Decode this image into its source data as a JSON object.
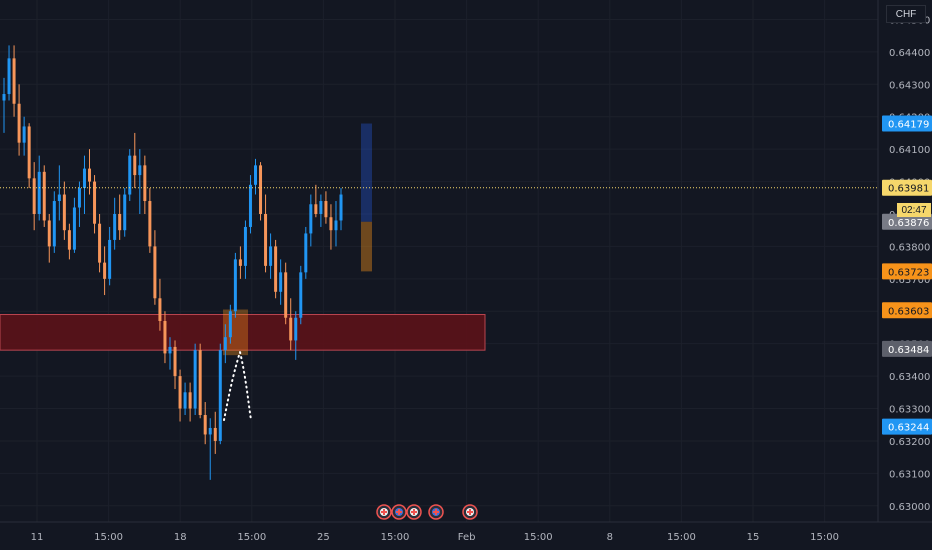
{
  "currency_label": "CHF",
  "countdown": "02:47",
  "chart_data": {
    "type": "candlestick",
    "title": "",
    "xlabel": "",
    "ylabel": "",
    "ylim": [
      0.6295,
      0.6456
    ],
    "y_ticks": [
      {
        "value": 0.645,
        "label": "0.64500"
      },
      {
        "value": 0.644,
        "label": "0.64400"
      },
      {
        "value": 0.643,
        "label": "0.64300"
      },
      {
        "value": 0.642,
        "label": "0.64200"
      },
      {
        "value": 0.641,
        "label": "0.64100"
      },
      {
        "value": 0.64,
        "label": "0.64000"
      },
      {
        "value": 0.639,
        "label": "0.63900"
      },
      {
        "value": 0.638,
        "label": "0.63800"
      },
      {
        "value": 0.637,
        "label": "0.63700"
      },
      {
        "value": 0.636,
        "label": "0.63600"
      },
      {
        "value": 0.635,
        "label": "0.63500"
      },
      {
        "value": 0.634,
        "label": "0.63400"
      },
      {
        "value": 0.633,
        "label": "0.63300"
      },
      {
        "value": 0.632,
        "label": "0.63200"
      },
      {
        "value": 0.631,
        "label": "0.63100"
      },
      {
        "value": 0.63,
        "label": "0.63000"
      }
    ],
    "x_ticks": [
      {
        "slot": 0,
        "label": "11"
      },
      {
        "slot": 1,
        "label": "15:00"
      },
      {
        "slot": 2,
        "label": "18"
      },
      {
        "slot": 3,
        "label": "15:00"
      },
      {
        "slot": 4,
        "label": "25"
      },
      {
        "slot": 5,
        "label": "15:00"
      },
      {
        "slot": 6,
        "label": "Feb"
      },
      {
        "slot": 7,
        "label": "15:00"
      },
      {
        "slot": 8,
        "label": "8"
      },
      {
        "slot": 9,
        "label": "15:00"
      },
      {
        "slot": 10,
        "label": "15"
      },
      {
        "slot": 11,
        "label": "15:00"
      }
    ],
    "price_tags": [
      {
        "value": 0.64179,
        "label": "0.64179",
        "bg": "#2196f3",
        "fg": "#ffffff"
      },
      {
        "value": 0.63981,
        "label": "0.63981",
        "bg": "#f6d76b",
        "fg": "#131722"
      },
      {
        "value": 0.63876,
        "label": "0.63876",
        "bg": "#787b86",
        "fg": "#ffffff"
      },
      {
        "value": 0.63723,
        "label": "0.63723",
        "bg": "#f7931a",
        "fg": "#131722"
      },
      {
        "value": 0.63603,
        "label": "0.63603",
        "bg": "#f7931a",
        "fg": "#131722"
      },
      {
        "value": 0.63484,
        "label": "0.63484",
        "bg": "#5d606b",
        "fg": "#ffffff"
      },
      {
        "value": 0.63244,
        "label": "0.63244",
        "bg": "#2196f3",
        "fg": "#ffffff"
      }
    ],
    "last_price": 0.63981,
    "demand_zone": {
      "top": 0.6359,
      "bottom": 0.6348,
      "color": "#5c1218",
      "border": "#b8454f"
    },
    "position_tool": {
      "entry": 0.63876,
      "target": 0.64179,
      "stop": 0.63723
    },
    "colors": {
      "up": "#2196f3",
      "down": "#f7965a",
      "background": "#131722",
      "grid": "#1c202b"
    },
    "candles": [
      [
        0.6425,
        0.6432,
        0.6415,
        0.6427
      ],
      [
        0.6427,
        0.6442,
        0.6425,
        0.6438
      ],
      [
        0.6438,
        0.6442,
        0.642,
        0.6424
      ],
      [
        0.6424,
        0.643,
        0.6408,
        0.6412
      ],
      [
        0.6412,
        0.642,
        0.6408,
        0.6417
      ],
      [
        0.6417,
        0.6418,
        0.6398,
        0.6401
      ],
      [
        0.6401,
        0.6406,
        0.6385,
        0.639
      ],
      [
        0.639,
        0.6408,
        0.6388,
        0.6403
      ],
      [
        0.6403,
        0.6405,
        0.6386,
        0.6388
      ],
      [
        0.6388,
        0.639,
        0.6375,
        0.638
      ],
      [
        0.638,
        0.6397,
        0.6378,
        0.6394
      ],
      [
        0.6394,
        0.6405,
        0.6388,
        0.6396
      ],
      [
        0.6396,
        0.64,
        0.6382,
        0.6385
      ],
      [
        0.6385,
        0.6387,
        0.6376,
        0.6379
      ],
      [
        0.6379,
        0.6395,
        0.6378,
        0.6392
      ],
      [
        0.6392,
        0.64,
        0.6386,
        0.6398
      ],
      [
        0.6398,
        0.6408,
        0.639,
        0.6404
      ],
      [
        0.6404,
        0.641,
        0.6396,
        0.64
      ],
      [
        0.64,
        0.6402,
        0.6384,
        0.6387
      ],
      [
        0.6387,
        0.639,
        0.6372,
        0.6375
      ],
      [
        0.6375,
        0.638,
        0.6365,
        0.637
      ],
      [
        0.637,
        0.6386,
        0.6368,
        0.6382
      ],
      [
        0.6382,
        0.6395,
        0.6379,
        0.639
      ],
      [
        0.639,
        0.6396,
        0.6382,
        0.6385
      ],
      [
        0.6385,
        0.6398,
        0.6383,
        0.6396
      ],
      [
        0.6396,
        0.641,
        0.6394,
        0.6408
      ],
      [
        0.6408,
        0.6415,
        0.6398,
        0.6402
      ],
      [
        0.6402,
        0.641,
        0.639,
        0.6405
      ],
      [
        0.6405,
        0.6408,
        0.639,
        0.6394
      ],
      [
        0.6394,
        0.6398,
        0.6378,
        0.638
      ],
      [
        0.638,
        0.6385,
        0.6362,
        0.6364
      ],
      [
        0.6364,
        0.637,
        0.6354,
        0.6357
      ],
      [
        0.6357,
        0.636,
        0.6344,
        0.6347
      ],
      [
        0.6347,
        0.6352,
        0.6342,
        0.6349
      ],
      [
        0.6349,
        0.6351,
        0.6336,
        0.634
      ],
      [
        0.634,
        0.6342,
        0.6326,
        0.633
      ],
      [
        0.633,
        0.6338,
        0.6328,
        0.6335
      ],
      [
        0.6335,
        0.6338,
        0.6326,
        0.633
      ],
      [
        0.633,
        0.635,
        0.6328,
        0.6348
      ],
      [
        0.6348,
        0.635,
        0.6327,
        0.6328
      ],
      [
        0.6328,
        0.6332,
        0.6319,
        0.6322
      ],
      [
        0.6322,
        0.6327,
        0.6308,
        0.6324
      ],
      [
        0.6324,
        0.6329,
        0.6316,
        0.632
      ],
      [
        0.632,
        0.635,
        0.6319,
        0.6348
      ],
      [
        0.6348,
        0.6356,
        0.6344,
        0.6352
      ],
      [
        0.6352,
        0.6362,
        0.635,
        0.636
      ],
      [
        0.636,
        0.6378,
        0.6358,
        0.6376
      ],
      [
        0.6376,
        0.638,
        0.637,
        0.6374
      ],
      [
        0.6374,
        0.6388,
        0.637,
        0.6386
      ],
      [
        0.6386,
        0.6402,
        0.6384,
        0.6399
      ],
      [
        0.6399,
        0.6407,
        0.6396,
        0.6405
      ],
      [
        0.6405,
        0.6406,
        0.6388,
        0.639
      ],
      [
        0.639,
        0.6396,
        0.6372,
        0.6374
      ],
      [
        0.6374,
        0.6384,
        0.637,
        0.638
      ],
      [
        0.638,
        0.6382,
        0.6364,
        0.6366
      ],
      [
        0.6366,
        0.6376,
        0.6362,
        0.6372
      ],
      [
        0.6372,
        0.6375,
        0.6356,
        0.6358
      ],
      [
        0.6358,
        0.6364,
        0.6348,
        0.6351
      ],
      [
        0.6351,
        0.636,
        0.6345,
        0.6358
      ],
      [
        0.6358,
        0.6374,
        0.6356,
        0.6372
      ],
      [
        0.6372,
        0.6386,
        0.637,
        0.6384
      ],
      [
        0.6384,
        0.6396,
        0.638,
        0.6393
      ],
      [
        0.6393,
        0.6399,
        0.6389,
        0.639
      ],
      [
        0.639,
        0.6396,
        0.6386,
        0.6394
      ],
      [
        0.6394,
        0.6397,
        0.6387,
        0.6389
      ],
      [
        0.6389,
        0.6393,
        0.6379,
        0.6385
      ],
      [
        0.6385,
        0.6394,
        0.638,
        0.6388
      ],
      [
        0.6388,
        0.6398,
        0.6385,
        0.6396
      ]
    ],
    "events": [
      {
        "type": "flag-event"
      },
      {
        "type": "flag-event"
      },
      {
        "type": "flag-event"
      },
      {
        "type": "flag-event"
      },
      {
        "type": "flag-event"
      },
      {
        "type": "flag-event"
      }
    ]
  }
}
